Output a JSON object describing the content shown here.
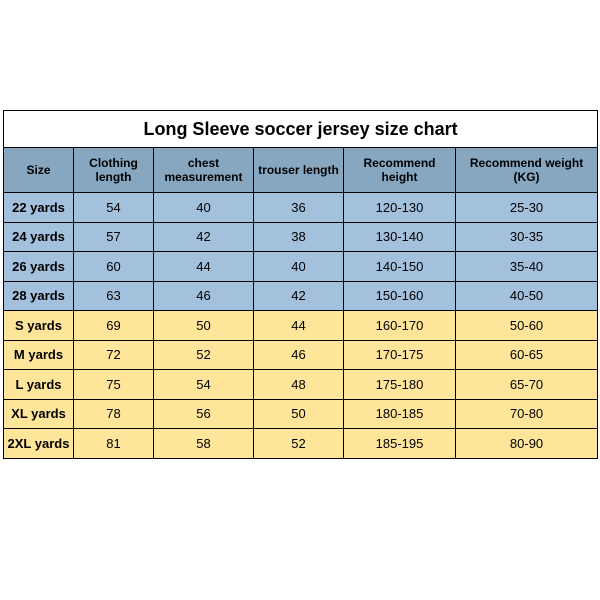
{
  "chart": {
    "type": "table",
    "title": "Long Sleeve soccer jersey size chart",
    "title_fontsize": 18,
    "header_fontsize": 12,
    "cell_fontsize": 13,
    "border_color": "#000000",
    "colors": {
      "title_bg": "#ffffff",
      "header_bg": "#87a7c0",
      "band_blue": "#a3c0dd",
      "band_yellow": "#ffe59a"
    },
    "columns": [
      {
        "label": "Size"
      },
      {
        "label": "Clothing length"
      },
      {
        "label": "chest measurement"
      },
      {
        "label": "trouser length"
      },
      {
        "label": "Recommend height"
      },
      {
        "label": "Recommend weight (KG)"
      }
    ],
    "rows": [
      {
        "band": "blue",
        "cells": [
          "22 yards",
          "54",
          "40",
          "36",
          "120-130",
          "25-30"
        ]
      },
      {
        "band": "blue",
        "cells": [
          "24 yards",
          "57",
          "42",
          "38",
          "130-140",
          "30-35"
        ]
      },
      {
        "band": "blue",
        "cells": [
          "26 yards",
          "60",
          "44",
          "40",
          "140-150",
          "35-40"
        ]
      },
      {
        "band": "blue",
        "cells": [
          "28 yards",
          "63",
          "46",
          "42",
          "150-160",
          "40-50"
        ]
      },
      {
        "band": "yellow",
        "cells": [
          "S yards",
          "69",
          "50",
          "44",
          "160-170",
          "50-60"
        ]
      },
      {
        "band": "yellow",
        "cells": [
          "M yards",
          "72",
          "52",
          "46",
          "170-175",
          "60-65"
        ]
      },
      {
        "band": "yellow",
        "cells": [
          "L yards",
          "75",
          "54",
          "48",
          "175-180",
          "65-70"
        ]
      },
      {
        "band": "yellow",
        "cells": [
          "XL yards",
          "78",
          "56",
          "50",
          "180-185",
          "70-80"
        ]
      },
      {
        "band": "yellow",
        "cells": [
          "2XL yards",
          "81",
          "58",
          "52",
          "185-195",
          "80-90"
        ]
      }
    ]
  }
}
